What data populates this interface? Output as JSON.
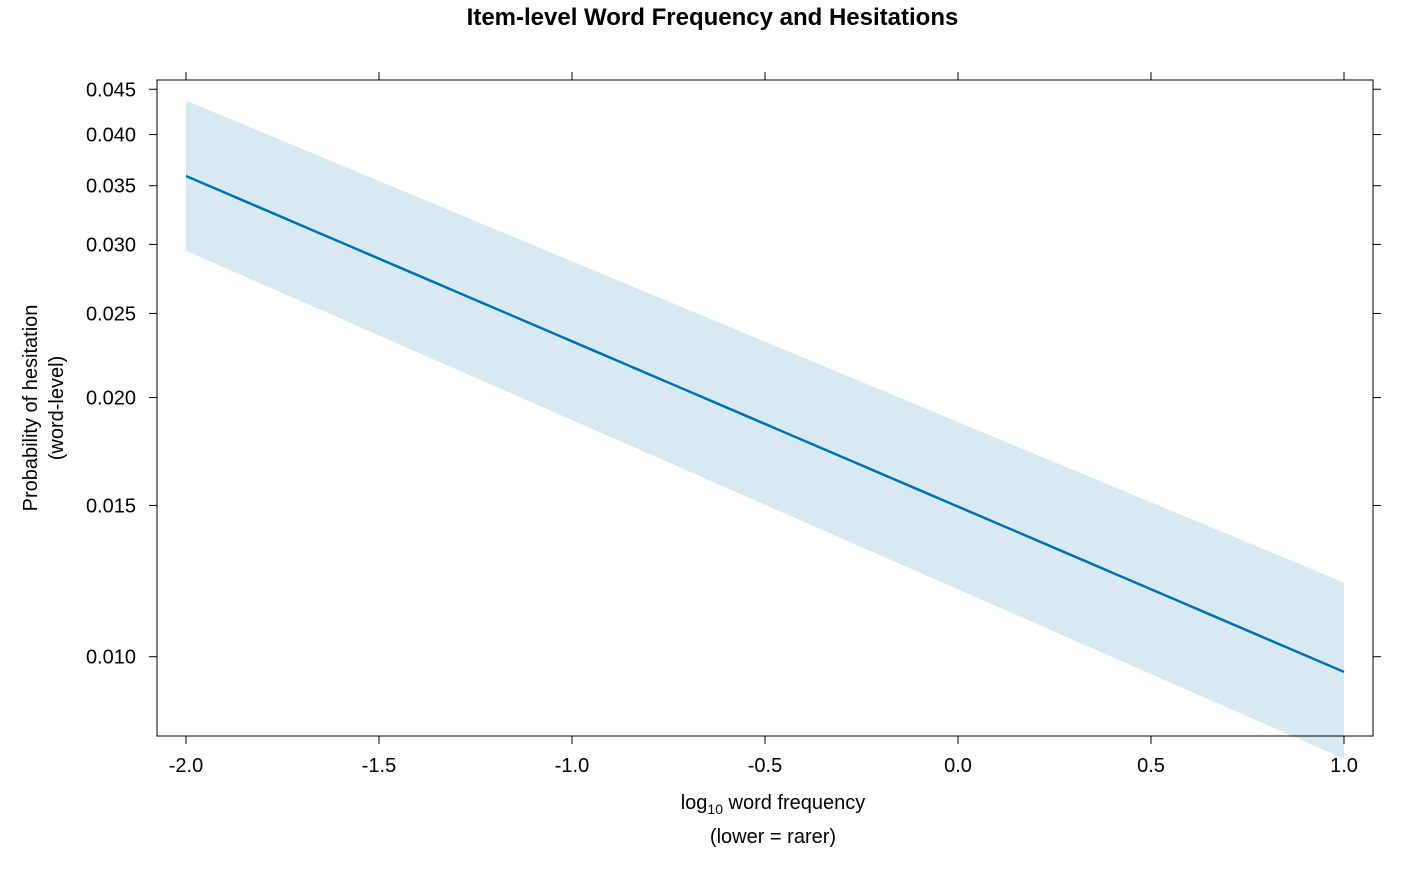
{
  "chart_data": {
    "type": "line",
    "title": "Item-level Word Frequency and Hesitations",
    "xlabel": "log10 word frequency",
    "xlabel_parts": {
      "base": "log",
      "subscript": "10",
      "rest": " word frequency"
    },
    "xlabel_line2": "(lower = rarer)",
    "ylabel_line1": "Probability of hesitation",
    "ylabel_line2": "(word-level)",
    "xlim": [
      -2.0,
      1.0
    ],
    "ylim": [
      0.0083,
      0.0455
    ],
    "y_scale": "logit",
    "x_ticks": [
      -2.0,
      -1.5,
      -1.0,
      -0.5,
      0.0,
      0.5,
      1.0
    ],
    "x_tick_labels": [
      "-2.0",
      "-1.5",
      "-1.0",
      "-0.5",
      "0.0",
      "0.5",
      "1.0"
    ],
    "y_ticks": [
      0.01,
      0.015,
      0.02,
      0.025,
      0.03,
      0.035,
      0.04,
      0.045
    ],
    "y_tick_labels": [
      "0.010",
      "0.015",
      "0.020",
      "0.025",
      "0.030",
      "0.035",
      "0.040",
      "0.045"
    ],
    "grid": false,
    "series": [
      {
        "x": [
          -2.0,
          1.0
        ],
        "y": [
          0.0359,
          0.0096
        ],
        "lower": [
          0.0295,
          0.0076
        ],
        "upper": [
          0.0437,
          0.0122
        ],
        "color": "#0072b2",
        "band_color": "#d9e9f2"
      }
    ]
  }
}
